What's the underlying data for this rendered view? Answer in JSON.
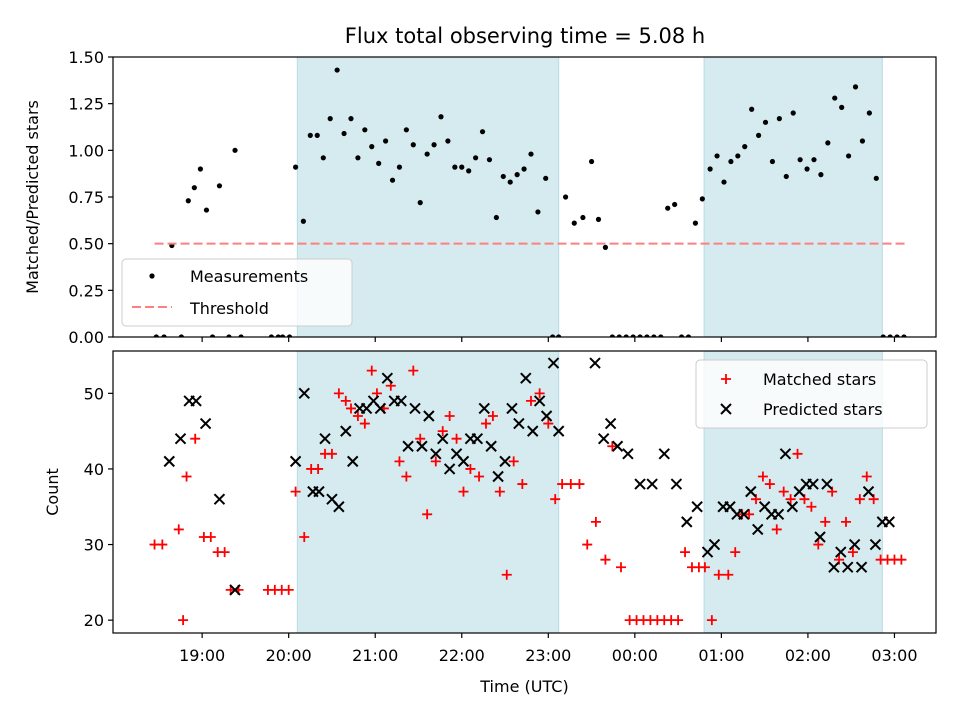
{
  "title": "Flux total observing time = 5.08 h",
  "chart_data": [
    {
      "type": "scatter",
      "panel": "top",
      "ylabel": "Matched/Predicted stars",
      "ylim": [
        0,
        1.5
      ],
      "yticks": [
        0.0,
        0.25,
        0.5,
        0.75,
        1.0,
        1.25,
        1.5
      ],
      "ytick_labels": [
        "0.00",
        "0.25",
        "0.50",
        "0.75",
        "1.00",
        "1.25",
        "1.50"
      ],
      "legend": {
        "position": "lower-left",
        "entries": [
          "Measurements",
          "Threshold"
        ]
      },
      "series": [
        {
          "name": "Measurements",
          "marker": "dot",
          "color": "#000000",
          "x": [
            18.47,
            18.56,
            18.65,
            18.76,
            18.84,
            18.91,
            18.98,
            19.05,
            19.12,
            19.2,
            19.31,
            19.38,
            19.45,
            19.8,
            19.88,
            19.93,
            20.01,
            20.08,
            20.17,
            20.25,
            20.33,
            20.4,
            20.48,
            20.56,
            20.64,
            20.72,
            20.8,
            20.88,
            20.96,
            21.04,
            21.12,
            21.2,
            21.28,
            21.36,
            21.44,
            21.52,
            21.6,
            21.68,
            21.76,
            21.84,
            21.92,
            22.0,
            22.08,
            22.16,
            22.24,
            22.32,
            22.4,
            22.48,
            22.56,
            22.64,
            22.72,
            22.8,
            22.88,
            22.97,
            23.05,
            23.12,
            23.2,
            23.3,
            23.4,
            23.5,
            23.58,
            23.66,
            23.74,
            23.82,
            23.9,
            23.98,
            24.06,
            24.14,
            24.22,
            24.3,
            24.38,
            24.46,
            24.54,
            24.62,
            24.7,
            24.78,
            24.87,
            24.95,
            25.03,
            25.11,
            25.19,
            25.27,
            25.35,
            25.43,
            25.51,
            25.59,
            25.67,
            25.75,
            25.83,
            25.91,
            25.99,
            26.07,
            26.15,
            26.23,
            26.31,
            26.39,
            26.47,
            26.55,
            26.63,
            26.71,
            26.79,
            26.87,
            26.95,
            27.03,
            27.11
          ],
          "y": [
            0.0,
            0.0,
            0.49,
            0.0,
            0.73,
            0.8,
            0.9,
            0.68,
            0.0,
            0.81,
            0.0,
            1.0,
            0.0,
            0.0,
            0.0,
            0.0,
            0.0,
            0.91,
            0.62,
            1.08,
            1.08,
            0.96,
            1.17,
            1.43,
            1.09,
            1.17,
            0.96,
            1.11,
            1.02,
            0.93,
            1.05,
            0.84,
            0.91,
            1.11,
            1.03,
            0.72,
            0.98,
            1.03,
            1.18,
            1.05,
            0.91,
            0.91,
            0.89,
            0.96,
            1.1,
            0.95,
            0.64,
            0.86,
            0.83,
            0.87,
            0.9,
            0.98,
            0.67,
            0.85,
            0.0,
            0.0,
            0.75,
            0.61,
            0.64,
            0.94,
            0.63,
            0.48,
            0.0,
            0.0,
            0.0,
            0.0,
            0.0,
            0.0,
            0.0,
            0.0,
            0.69,
            0.71,
            0.0,
            0.0,
            0.61,
            0.74,
            0.9,
            0.97,
            0.83,
            0.94,
            0.97,
            1.02,
            1.22,
            1.08,
            1.15,
            0.94,
            1.17,
            0.86,
            1.2,
            0.95,
            0.9,
            0.95,
            0.87,
            1.04,
            1.28,
            1.23,
            0.97,
            1.34,
            1.05,
            1.2,
            0.85,
            0.0,
            0.0,
            0.0,
            0.0
          ]
        },
        {
          "name": "Threshold",
          "style": "dashed",
          "color": "#ff7f7f",
          "x": [
            18.45,
            27.15
          ],
          "y": [
            0.5,
            0.5
          ]
        }
      ]
    },
    {
      "type": "scatter",
      "panel": "bottom",
      "xlabel": "Time (UTC)",
      "ylabel": "Count",
      "ylim": [
        18.3,
        55.6
      ],
      "yticks": [
        20,
        30,
        40,
        50
      ],
      "ytick_labels": [
        "20",
        "30",
        "40",
        "50"
      ],
      "xticks": [
        19,
        20,
        21,
        22,
        23,
        24,
        25,
        26,
        27
      ],
      "xtick_labels": [
        "19:00",
        "20:00",
        "21:00",
        "22:00",
        "23:00",
        "00:00",
        "01:00",
        "02:00",
        "03:00"
      ],
      "legend": {
        "position": "upper-right",
        "entries": [
          "Matched stars",
          "Predicted stars"
        ]
      },
      "series": [
        {
          "name": "Matched stars",
          "marker": "plus",
          "color": "#ff0000",
          "x": [
            18.45,
            18.54,
            18.73,
            18.78,
            18.82,
            18.92,
            19.02,
            19.1,
            19.18,
            19.26,
            19.33,
            19.42,
            19.76,
            19.84,
            19.92,
            20.0,
            20.08,
            20.18,
            20.26,
            20.34,
            20.42,
            20.5,
            20.58,
            20.66,
            20.72,
            20.8,
            20.88,
            20.96,
            21.02,
            21.1,
            21.18,
            21.28,
            21.36,
            21.44,
            21.52,
            21.6,
            21.7,
            21.78,
            21.86,
            21.94,
            22.02,
            22.1,
            22.2,
            22.28,
            22.36,
            22.44,
            22.52,
            22.6,
            22.7,
            22.8,
            22.9,
            23.0,
            23.08,
            23.16,
            23.26,
            23.36,
            23.45,
            23.55,
            23.66,
            23.74,
            23.84,
            23.94,
            24.02,
            24.1,
            24.18,
            24.26,
            24.34,
            24.42,
            24.5,
            24.58,
            24.66,
            24.74,
            24.81,
            24.89,
            24.97,
            25.08,
            25.16,
            25.24,
            25.32,
            25.4,
            25.48,
            25.56,
            25.64,
            25.72,
            25.8,
            25.88,
            25.96,
            26.04,
            26.12,
            26.2,
            26.28,
            26.36,
            26.44,
            26.52,
            26.6,
            26.68,
            26.76,
            26.84,
            26.92,
            27.0,
            27.08
          ],
          "y": [
            30,
            30,
            32,
            20,
            39,
            44,
            31,
            31,
            29,
            29,
            24,
            24,
            24,
            24,
            24,
            24,
            37,
            31,
            40,
            40,
            42,
            42,
            50,
            49,
            48,
            47,
            46,
            53,
            50,
            48,
            51,
            41,
            39,
            53,
            44,
            34,
            41,
            45,
            47,
            44,
            37,
            40,
            39,
            46,
            47,
            37,
            26,
            41,
            38,
            49,
            50,
            46,
            36,
            38,
            38,
            38,
            30,
            33,
            28,
            43,
            27,
            20,
            20,
            20,
            20,
            20,
            20,
            20,
            20,
            29,
            27,
            27,
            27,
            20,
            26,
            26,
            29,
            34,
            34,
            36,
            39,
            38,
            32,
            37,
            36,
            42,
            36,
            35,
            30,
            33,
            37,
            28,
            33,
            29,
            36,
            39,
            36,
            28,
            28,
            28,
            28
          ]
        },
        {
          "name": "Predicted stars",
          "marker": "x",
          "color": "#000000",
          "x": [
            18.46,
            18.62,
            18.75,
            18.85,
            18.93,
            19.04,
            19.2,
            19.38,
            20.08,
            20.18,
            20.28,
            20.35,
            20.42,
            20.5,
            20.58,
            20.66,
            20.74,
            20.82,
            20.9,
            20.98,
            21.06,
            21.14,
            21.22,
            21.3,
            21.38,
            21.46,
            21.54,
            21.62,
            21.7,
            21.78,
            21.86,
            21.94,
            22.02,
            22.1,
            22.18,
            22.26,
            22.34,
            22.42,
            22.5,
            22.58,
            22.66,
            22.74,
            22.82,
            22.9,
            22.98,
            23.06,
            23.12,
            23.54,
            23.64,
            23.72,
            23.8,
            23.92,
            24.06,
            24.2,
            24.34,
            24.48,
            24.6,
            24.72,
            24.84,
            24.92,
            25.02,
            25.1,
            25.18,
            25.26,
            25.34,
            25.42,
            25.5,
            25.58,
            25.66,
            25.74,
            25.82,
            25.9,
            25.98,
            26.06,
            26.14,
            26.22,
            26.3,
            26.38,
            26.46,
            26.54,
            26.62,
            26.7,
            26.78,
            26.86,
            26.94
          ],
          "y": [
            null,
            41,
            44,
            49,
            49,
            46,
            36,
            24,
            41,
            50,
            37,
            37,
            44,
            36,
            35,
            45,
            41,
            48,
            48,
            49,
            48,
            52,
            49,
            49,
            43,
            48,
            43,
            47,
            42,
            44,
            40,
            42,
            41,
            44,
            44,
            48,
            43,
            39,
            41,
            48,
            46,
            52,
            45,
            49,
            47,
            54,
            45,
            54,
            44,
            46,
            43,
            42,
            38,
            38,
            42,
            38,
            33,
            35,
            29,
            30,
            35,
            35,
            34,
            34,
            37,
            32,
            35,
            34,
            34,
            42,
            35,
            37,
            38,
            38,
            31,
            38,
            27,
            29,
            27,
            30,
            27,
            37,
            30,
            33,
            33
          ]
        }
      ]
    }
  ],
  "shaded_intervals": [
    [
      20.1,
      23.12
    ],
    [
      24.8,
      26.86
    ]
  ],
  "colors": {
    "shade": "#d5ebf0",
    "shade_edge": "#b6dbe6",
    "threshold": "#ff7f7f",
    "matched": "#ff0000",
    "predicted": "#000000"
  }
}
